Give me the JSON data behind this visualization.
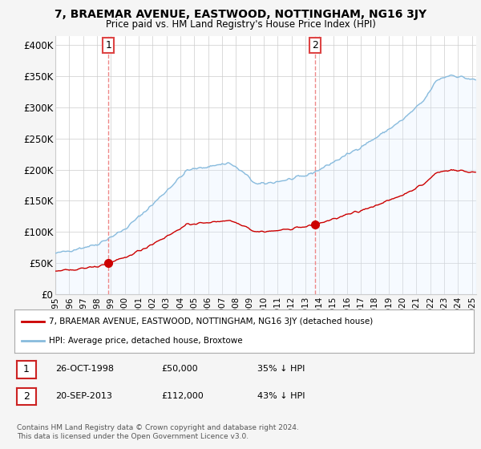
{
  "title": "7, BRAEMAR AVENUE, EASTWOOD, NOTTINGHAM, NG16 3JY",
  "subtitle": "Price paid vs. HM Land Registry's House Price Index (HPI)",
  "ylabel_ticks": [
    "£0",
    "£50K",
    "£100K",
    "£150K",
    "£200K",
    "£250K",
    "£300K",
    "£350K",
    "£400K"
  ],
  "ytick_values": [
    0,
    50000,
    100000,
    150000,
    200000,
    250000,
    300000,
    350000,
    400000
  ],
  "ylim": [
    0,
    415000
  ],
  "xlim_start": 1995.0,
  "xlim_end": 2025.3,
  "sale1_x": 1998.82,
  "sale1_y": 50000,
  "sale2_x": 2013.72,
  "sale2_y": 112000,
  "price_line_color": "#cc0000",
  "hpi_line_color": "#88bbdd",
  "hpi_fill_color": "#ddeeff",
  "vline_color": "#ee8888",
  "marker_color": "#cc0000",
  "legend_label_price": "7, BRAEMAR AVENUE, EASTWOOD, NOTTINGHAM, NG16 3JY (detached house)",
  "legend_label_hpi": "HPI: Average price, detached house, Broxtowe",
  "note1_date": "26-OCT-1998",
  "note1_price": "£50,000",
  "note1_hpi": "35% ↓ HPI",
  "note2_date": "20-SEP-2013",
  "note2_price": "£112,000",
  "note2_hpi": "43% ↓ HPI",
  "footer": "Contains HM Land Registry data © Crown copyright and database right 2024.\nThis data is licensed under the Open Government Licence v3.0.",
  "background_color": "#f5f5f5",
  "plot_bg_color": "#ffffff",
  "grid_color": "#cccccc"
}
